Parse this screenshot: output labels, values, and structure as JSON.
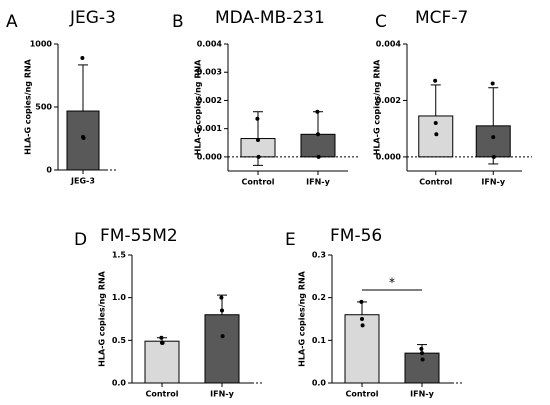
{
  "chart_data": [
    {
      "type": "bar",
      "panel": "A",
      "title": "JEG-3",
      "ylabel": "HLA-G copies/ng RNA",
      "categories": [
        "JEG-3"
      ],
      "values": [
        468
      ],
      "errors": [
        366
      ],
      "colors": [
        "#595959"
      ],
      "points": [
        [
          889,
          262,
          254
        ]
      ],
      "ylim": [
        0,
        1000
      ],
      "yticks": [
        0,
        500,
        1000
      ]
    },
    {
      "type": "bar",
      "panel": "B",
      "title": "MDA-MB-231",
      "ylabel": "HLA-G copies/ng RNA",
      "categories": [
        "Control",
        "IFN-y"
      ],
      "values": [
        0.00065,
        0.0008
      ],
      "errors": [
        0.00095,
        0.0008
      ],
      "colors": [
        "#d9d9d9",
        "#595959"
      ],
      "points": [
        [
          0.00135,
          0.0006,
          0.0
        ],
        [
          0.0016,
          0.0008,
          0.0
        ]
      ],
      "ylim": [
        -0.0005,
        0.004
      ],
      "yticks": [
        {
          "value": 0,
          "label": "0.000"
        },
        0.001,
        0.002,
        0.003,
        0.004
      ]
    },
    {
      "type": "bar",
      "panel": "C",
      "title": "MCF-7",
      "ylabel": "HLA-G copies/ng RNA",
      "categories": [
        "Control",
        "IFN-y"
      ],
      "values": [
        0.00145,
        0.0011
      ],
      "errors": [
        0.0011,
        0.00135
      ],
      "colors": [
        "#d9d9d9",
        "#595959"
      ],
      "points": [
        [
          0.0027,
          0.0012,
          0.0008
        ],
        [
          0.0026,
          0.0007,
          0.0
        ]
      ],
      "ylim": [
        -0.0005,
        0.004
      ],
      "yticks": [
        {
          "value": 0,
          "label": "0.000"
        },
        0.002,
        0.004
      ]
    },
    {
      "type": "bar",
      "panel": "D",
      "title": "FM-55M2",
      "ylabel": "HLA-G copies/ng RNA",
      "categories": [
        "Control",
        "IFN-y"
      ],
      "values": [
        0.49,
        0.8
      ],
      "errors": [
        0.04,
        0.23
      ],
      "colors": [
        "#d9d9d9",
        "#595959"
      ],
      "points": [
        [
          0.53,
          0.47,
          0.47
        ],
        [
          1.0,
          0.85,
          0.55
        ]
      ],
      "ylim": [
        0,
        1.5
      ],
      "yticks": [
        {
          "value": 0,
          "label": "0.0"
        },
        0.5,
        {
          "value": 1,
          "label": "1.0"
        },
        1.5
      ]
    },
    {
      "type": "bar",
      "panel": "E",
      "title": "FM-56",
      "ylabel": "HLA-G copies/ng RNA",
      "categories": [
        "Control",
        "IFN-y"
      ],
      "values": [
        0.16,
        0.07
      ],
      "errors": [
        0.03,
        0.02
      ],
      "colors": [
        "#d9d9d9",
        "#595959"
      ],
      "points": [
        [
          0.19,
          0.15,
          0.135
        ],
        [
          0.08,
          0.07,
          0.055
        ]
      ],
      "ylim": [
        0,
        0.3
      ],
      "yticks": [
        {
          "value": 0,
          "label": "0.0"
        },
        0.1,
        0.2,
        0.3
      ],
      "annotation": "*"
    }
  ]
}
